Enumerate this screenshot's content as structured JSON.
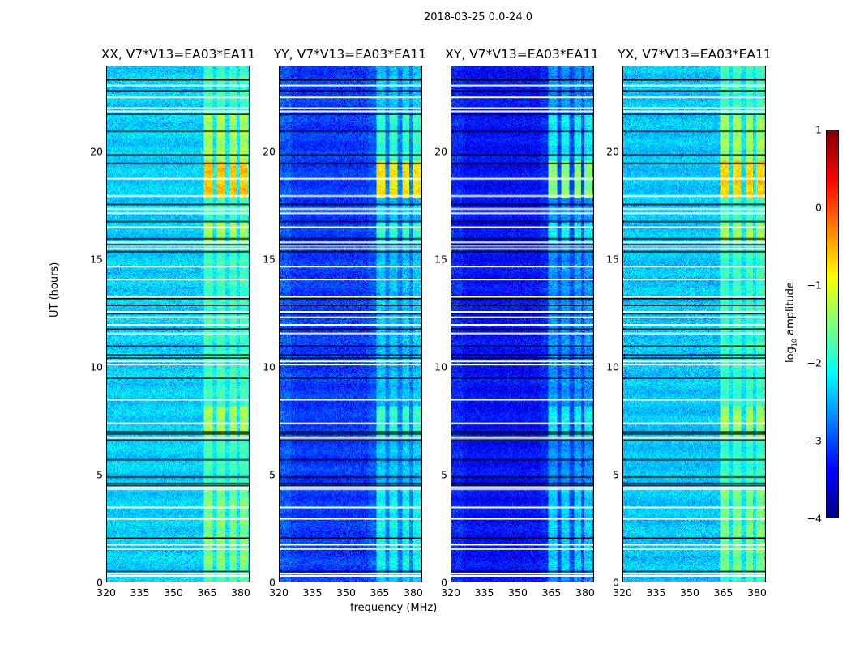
{
  "figure_title": "2018-03-25 0.0-24.0",
  "chart_data": {
    "type": "heatmap",
    "title": "2018-03-25 0.0-24.0",
    "xlabel": "frequency (MHz)",
    "ylabel": "UT (hours)",
    "xlim": [
      320,
      384
    ],
    "ylim": [
      0,
      24
    ],
    "xticks": [
      "320",
      "335",
      "350",
      "365",
      "380"
    ],
    "yticks": [
      "0",
      "5",
      "10",
      "15",
      "20"
    ],
    "panels": [
      {
        "title": "XX, V7*V13=EA03*EA11",
        "base_log_amp": -2.35
      },
      {
        "title": "YY, V7*V13=EA03*EA11",
        "base_log_amp": -2.95
      },
      {
        "title": "XY, V7*V13=EA03*EA11",
        "base_log_amp": -3.2
      },
      {
        "title": "YX, V7*V13=EA03*EA11",
        "base_log_amp": -2.4
      }
    ],
    "rfi_freq_ranges_mhz": [
      [
        363.5,
        367.5
      ],
      [
        369.5,
        373
      ],
      [
        375,
        378.5
      ],
      [
        380,
        383.5
      ]
    ],
    "rfi_strong_time_hours": [
      17.9,
      19.6
    ],
    "colorbar": {
      "label": "log10 amplitude",
      "range": [
        -4,
        1
      ],
      "ticks": [
        "1",
        "0",
        "−1",
        "−2",
        "−3",
        "−4"
      ],
      "colormap": "jet"
    }
  }
}
